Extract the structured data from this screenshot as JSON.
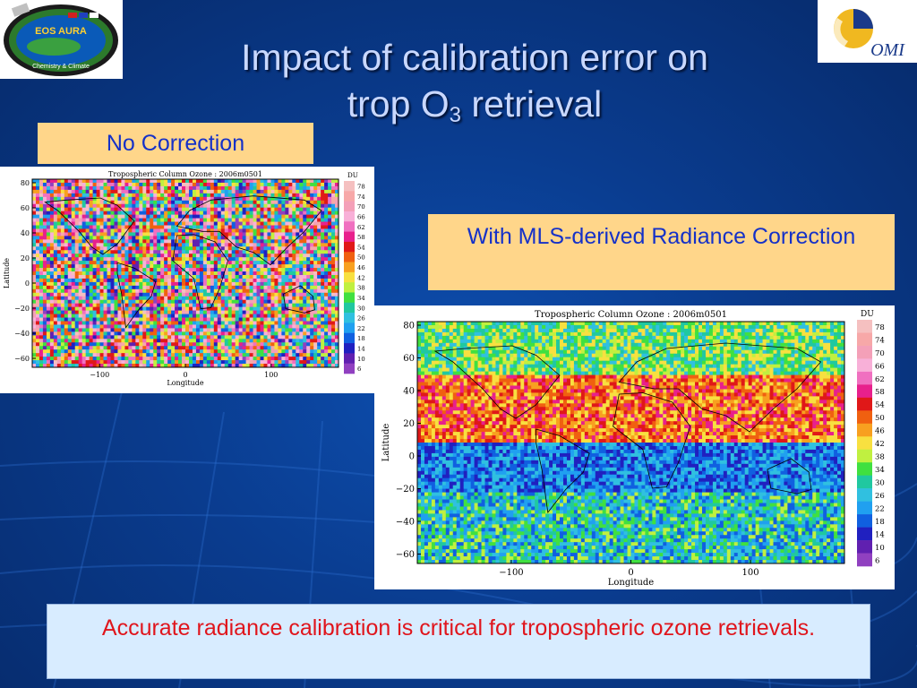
{
  "slide": {
    "title_line1": "Impact of calibration error on",
    "title_line2_pre": "trop O",
    "title_sub": "3",
    "title_line2_post": " retrieval",
    "label_no_correction": "No Correction",
    "label_with_correction": "With MLS-derived Radiance Correction",
    "conclusion": "Accurate radiance calibration is critical for tropospheric ozone retrievals."
  },
  "logos": {
    "left_text1": "EOS AURA",
    "left_text2": "Chemistry & Climate",
    "right_text": "OMI"
  },
  "maps": {
    "title": "Tropospheric Column Ozone : 2006m0501",
    "xlabel": "Longitude",
    "ylabel": "Latitude",
    "colorbar_unit": "DU",
    "x_ticks": [
      "−100",
      "0",
      "100"
    ],
    "y_ticks": [
      "80",
      "60",
      "40",
      "20",
      "0",
      "−20",
      "−40",
      "−60"
    ],
    "colorbar_ticks": [
      "78",
      "74",
      "70",
      "66",
      "62",
      "58",
      "54",
      "50",
      "46",
      "42",
      "38",
      "34",
      "30",
      "26",
      "22",
      "18",
      "14",
      "10",
      "6"
    ],
    "colorbar_colors": [
      "#f5c0c0",
      "#f7a8a8",
      "#f4a0b8",
      "#f8b0d8",
      "#f070c0",
      "#e8208c",
      "#e01818",
      "#f06010",
      "#f8a020",
      "#f8e040",
      "#c0f040",
      "#40e040",
      "#20c8a0",
      "#30c0e0",
      "#20a0f0",
      "#1060e0",
      "#2020c0",
      "#6020b0",
      "#9040c0"
    ]
  }
}
